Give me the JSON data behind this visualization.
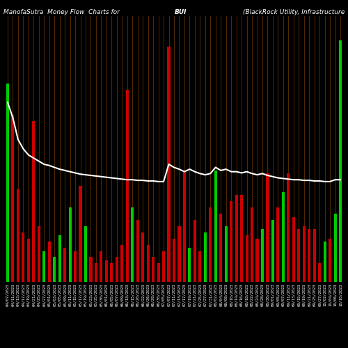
{
  "title_left": "ManofaSutra  Money Flow  Charts for",
  "title_center": "BUI",
  "title_right": "(BlackRock Utility, Infrastructure",
  "background_color": "#000000",
  "line_color": "#ffffff",
  "grid_color": "#8B4500",
  "categories": [
    "04/07/2023",
    "04/11/2023",
    "04/13/2023",
    "04/17/2023",
    "04/19/2023",
    "04/21/2023",
    "04/25/2023",
    "04/27/2023",
    "05/01/2023",
    "05/03/2023",
    "05/05/2023",
    "05/09/2023",
    "05/11/2023",
    "05/15/2023",
    "05/17/2023",
    "05/19/2023",
    "05/23/2023",
    "05/25/2023",
    "05/30/2023",
    "06/01/2023",
    "06/05/2023",
    "06/07/2023",
    "06/09/2023",
    "06/13/2023",
    "06/15/2023",
    "06/20/2023",
    "06/22/2023",
    "06/26/2023",
    "06/28/2023",
    "06/30/2023",
    "07/05/2023",
    "07/07/2023",
    "07/11/2023",
    "07/13/2023",
    "07/17/2023",
    "07/19/2023",
    "07/21/2023",
    "07/25/2023",
    "07/27/2023",
    "07/31/2023",
    "08/02/2023",
    "08/04/2023",
    "08/08/2023",
    "08/10/2023",
    "08/14/2023",
    "08/16/2023",
    "08/18/2023",
    "08/22/2023",
    "08/24/2023",
    "08/28/2023",
    "08/30/2023",
    "09/01/2023",
    "09/05/2023",
    "09/07/2023",
    "09/11/2023",
    "09/13/2023",
    "09/15/2023",
    "09/19/2023",
    "09/21/2023",
    "09/25/2023",
    "09/27/2023",
    "10/02/2023",
    "10/04/2023",
    "10/06/2023",
    "10/10/2023"
  ],
  "values": [
    320,
    270,
    150,
    80,
    70,
    260,
    90,
    50,
    65,
    40,
    75,
    55,
    120,
    50,
    155,
    90,
    40,
    30,
    50,
    35,
    30,
    40,
    60,
    310,
    120,
    100,
    80,
    60,
    40,
    30,
    50,
    380,
    70,
    90,
    180,
    55,
    100,
    50,
    80,
    120,
    180,
    110,
    90,
    130,
    140,
    140,
    75,
    120,
    70,
    85,
    175,
    100,
    120,
    145,
    175,
    105,
    85,
    90,
    85,
    85,
    30,
    65,
    70,
    110,
    390
  ],
  "bar_colors": [
    "#00cc00",
    "#cc0000",
    "#cc0000",
    "#cc0000",
    "#cc0000",
    "#cc0000",
    "#cc0000",
    "#00cc00",
    "#cc0000",
    "#00cc00",
    "#00cc00",
    "#cc0000",
    "#00cc00",
    "#cc0000",
    "#cc0000",
    "#00cc00",
    "#cc0000",
    "#cc0000",
    "#cc0000",
    "#cc0000",
    "#cc0000",
    "#cc0000",
    "#cc0000",
    "#cc0000",
    "#00cc00",
    "#cc0000",
    "#cc0000",
    "#cc0000",
    "#cc0000",
    "#cc0000",
    "#cc0000",
    "#cc0000",
    "#cc0000",
    "#cc0000",
    "#cc0000",
    "#00cc00",
    "#cc0000",
    "#cc0000",
    "#00cc00",
    "#cc0000",
    "#00cc00",
    "#cc0000",
    "#00cc00",
    "#cc0000",
    "#cc0000",
    "#cc0000",
    "#cc0000",
    "#cc0000",
    "#cc0000",
    "#00cc00",
    "#cc0000",
    "#00cc00",
    "#cc0000",
    "#00cc00",
    "#cc0000",
    "#cc0000",
    "#cc0000",
    "#cc0000",
    "#cc0000",
    "#cc0000",
    "#cc0000",
    "#00cc00",
    "#cc0000",
    "#00cc00",
    "#00cc00"
  ],
  "line_values": [
    290,
    265,
    230,
    215,
    205,
    200,
    195,
    190,
    188,
    185,
    182,
    180,
    178,
    176,
    174,
    173,
    172,
    171,
    170,
    169,
    168,
    167,
    166,
    165,
    165,
    164,
    164,
    163,
    163,
    162,
    162,
    190,
    185,
    182,
    178,
    182,
    178,
    175,
    173,
    175,
    185,
    180,
    182,
    178,
    178,
    176,
    178,
    175,
    173,
    175,
    172,
    170,
    168,
    167,
    166,
    165,
    165,
    164,
    164,
    163,
    163,
    162,
    162,
    165,
    165
  ],
  "ylim_min": 0,
  "ylim_max": 430,
  "title_fontsize": 6.5,
  "tick_fontsize": 4.0
}
